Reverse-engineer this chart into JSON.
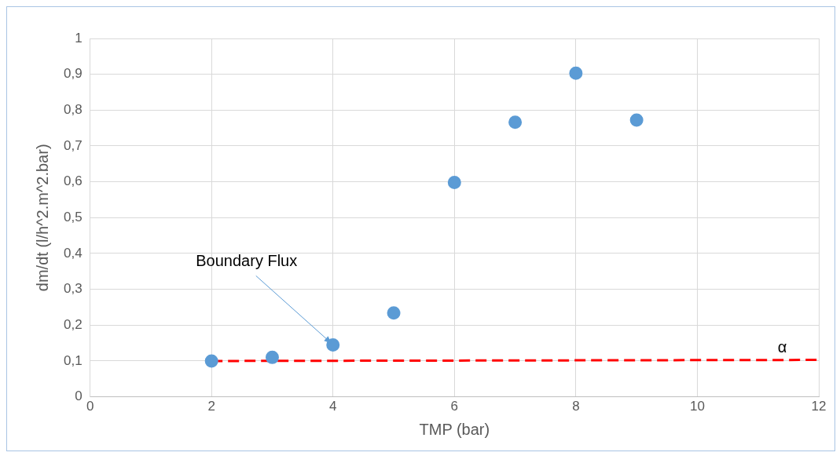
{
  "chart_data": {
    "type": "scatter",
    "xlabel": "TMP (bar)",
    "ylabel": "dm/dt (l/h^2.m^2.bar)",
    "series": [
      {
        "color": "#5b9bd5",
        "x": [
          2,
          3,
          4,
          5,
          6,
          7,
          8,
          9
        ],
        "values": [
          0.1,
          0.11,
          0.145,
          0.234,
          0.598,
          0.766,
          0.903,
          0.772
        ],
        "marker": "circle"
      },
      {
        "type": "line",
        "color": "#ff0000",
        "x": [
          2,
          12
        ],
        "values": [
          0.1,
          0.103
        ],
        "line_style": "dashed",
        "marker": "none"
      }
    ],
    "xlim": [
      0,
      12
    ],
    "xticks": [
      0,
      2,
      4,
      6,
      8,
      10,
      12
    ],
    "ylim": [
      0,
      1
    ],
    "yticks": [
      0,
      {
        "value": 0.1,
        "label": "0,1"
      },
      {
        "value": 0.2,
        "label": "0,2"
      },
      {
        "value": 0.3,
        "label": "0,3"
      },
      {
        "value": 0.4,
        "label": "0,4"
      },
      {
        "value": 0.5,
        "label": "0,5"
      },
      {
        "value": 0.6,
        "label": "0,6"
      },
      {
        "value": 0.7,
        "label": "0,7"
      },
      {
        "value": 0.8,
        "label": "0,8"
      },
      {
        "value": 0.9,
        "label": "0,9"
      },
      1
    ],
    "annotations": [
      {
        "text": "Boundary Flux",
        "x": 4,
        "y": 0.145
      },
      {
        "text": "α",
        "x": 11.4,
        "y": 0.103
      }
    ],
    "grid": true,
    "legend": false
  }
}
